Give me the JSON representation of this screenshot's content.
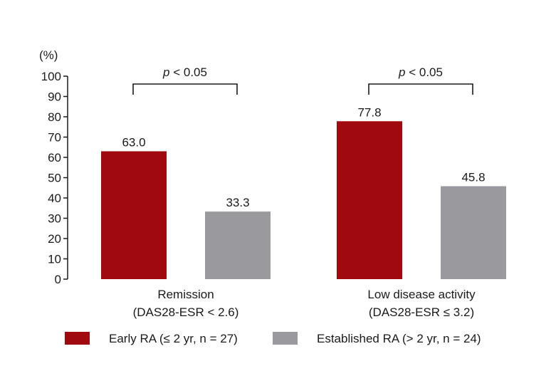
{
  "chart_data": {
    "type": "bar",
    "ylabel": "(%)",
    "ylim": [
      0,
      100
    ],
    "yticks": [
      0,
      10,
      20,
      30,
      40,
      50,
      60,
      70,
      80,
      90,
      100
    ],
    "categories": [
      {
        "line1": "Remission",
        "line2": "(DAS28-ESR < 2.6)"
      },
      {
        "line1": "Low disease activity",
        "line2": "(DAS28-ESR ≤ 3.2)"
      }
    ],
    "series": [
      {
        "name": "Early RA (≤ 2 yr, n = 27)",
        "color": "#a00a0f",
        "values": [
          63.0,
          77.8
        ],
        "labels": [
          "63.0",
          "77.8"
        ]
      },
      {
        "name": "Established RA (> 2 yr, n = 24)",
        "color": "#9a9a9e",
        "values": [
          33.3,
          45.8
        ],
        "labels": [
          "33.3",
          "45.8"
        ]
      }
    ],
    "annotations": [
      {
        "p": "p",
        "text": " < 0.05",
        "category_index": 0
      },
      {
        "p": "p",
        "text": " < 0.05",
        "category_index": 1
      }
    ],
    "legend_position": "bottom",
    "grid": false
  }
}
